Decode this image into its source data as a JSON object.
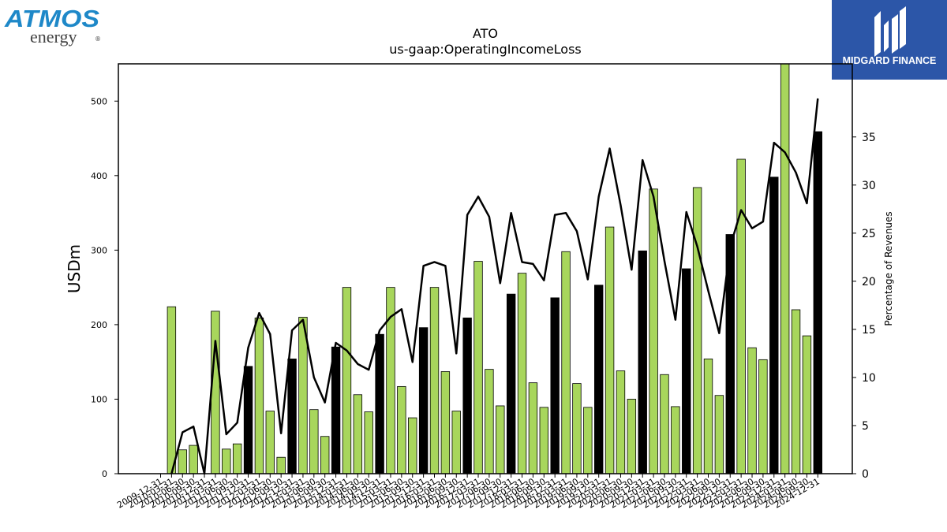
{
  "logos": {
    "left": {
      "line1": "ATMOS",
      "line2": "energy",
      "mark": "®"
    },
    "right": {
      "text": "MIDGARD FINANCE"
    }
  },
  "chart_data": {
    "type": "bar",
    "title": "ATO",
    "subtitle": "us-gaap:OperatingIncomeLoss",
    "ylabel": "USDm",
    "y2label": "Percentage of Revenues",
    "ylim": [
      0,
      550
    ],
    "y2lim": [
      0,
      42.6
    ],
    "yticks": [
      0,
      100,
      200,
      300,
      400,
      500
    ],
    "y2ticks": [
      0,
      5,
      10,
      15,
      20,
      25,
      30,
      35
    ],
    "xlabels": [
      "2009-12-31",
      "2010-03-31",
      "2010-06-30",
      "2010-09-30",
      "2010-12-31",
      "2011-03-31",
      "2011-06-30",
      "2011-09-30",
      "2011-12-31",
      "2012-03-31",
      "2012-06-30",
      "2012-09-30",
      "2012-12-31",
      "2013-03-31",
      "2013-06-30",
      "2013-09-30",
      "2013-12-31",
      "2014-03-31",
      "2014-06-30",
      "2014-09-30",
      "2014-12-31",
      "2015-03-31",
      "2015-06-30",
      "2015-09-30",
      "2015-12-31",
      "2016-03-31",
      "2016-06-30",
      "2016-09-30",
      "2016-12-31",
      "2017-03-31",
      "2017-06-30",
      "2017-09-30",
      "2017-12-31",
      "2018-03-31",
      "2018-06-30",
      "2018-09-30",
      "2018-12-31",
      "2019-03-31",
      "2019-06-30",
      "2019-09-30",
      "2019-12-31",
      "2020-03-31",
      "2020-06-30",
      "2020-09-30",
      "2020-12-31",
      "2021-03-31",
      "2021-06-30",
      "2021-09-30",
      "2021-12-31",
      "2022-03-31",
      "2022-06-30",
      "2022-09-30",
      "2022-12-31",
      "2023-03-31",
      "2023-06-30",
      "2023-09-30",
      "2023-12-31",
      "2024-03-31",
      "2024-06-30",
      "2024-09-30",
      "2024-12-31"
    ],
    "bar_values": [
      0,
      224,
      32,
      38,
      0,
      218,
      33,
      40,
      144,
      209,
      84,
      22,
      154,
      210,
      86,
      50,
      170,
      250,
      106,
      83,
      187,
      250,
      117,
      75,
      196,
      250,
      137,
      84,
      209,
      285,
      140,
      91,
      241,
      269,
      122,
      89,
      236,
      298,
      121,
      89,
      253,
      331,
      138,
      100,
      299,
      382,
      133,
      90,
      275,
      384,
      154,
      105,
      321,
      422,
      169,
      153,
      398,
      556,
      220,
      185,
      459
    ],
    "bar_types": [
      "g",
      "g",
      "g",
      "g",
      "g",
      "g",
      "g",
      "g",
      "k",
      "g",
      "g",
      "g",
      "k",
      "g",
      "g",
      "g",
      "k",
      "g",
      "g",
      "g",
      "k",
      "g",
      "g",
      "g",
      "k",
      "g",
      "g",
      "g",
      "k",
      "g",
      "g",
      "g",
      "k",
      "g",
      "g",
      "g",
      "k",
      "g",
      "g",
      "g",
      "k",
      "g",
      "g",
      "g",
      "k",
      "g",
      "g",
      "g",
      "k",
      "g",
      "g",
      "g",
      "k",
      "g",
      "g",
      "g",
      "k",
      "g",
      "g",
      "g",
      "k"
    ],
    "bar_colors": {
      "g": "#a8d65c",
      "k": "#000000"
    },
    "pct_values": [
      null,
      0,
      4.3,
      4.9,
      0,
      13.8,
      4.1,
      5.3,
      13.1,
      16.7,
      14.5,
      4.2,
      14.9,
      16.0,
      10.0,
      7.4,
      13.6,
      12.8,
      11.4,
      10.8,
      14.9,
      16.3,
      17.1,
      11.6,
      21.6,
      22.0,
      21.6,
      12.5,
      26.9,
      28.8,
      26.7,
      19.8,
      27.1,
      22.0,
      21.8,
      20.1,
      26.9,
      27.1,
      25.2,
      20.2,
      28.8,
      33.8,
      27.9,
      21.2,
      32.6,
      28.8,
      22.1,
      16.0,
      27.2,
      23.6,
      19.0,
      14.6,
      23.6,
      27.4,
      25.5,
      26.2,
      34.4,
      33.4,
      31.3,
      28.1,
      39.0
    ]
  }
}
